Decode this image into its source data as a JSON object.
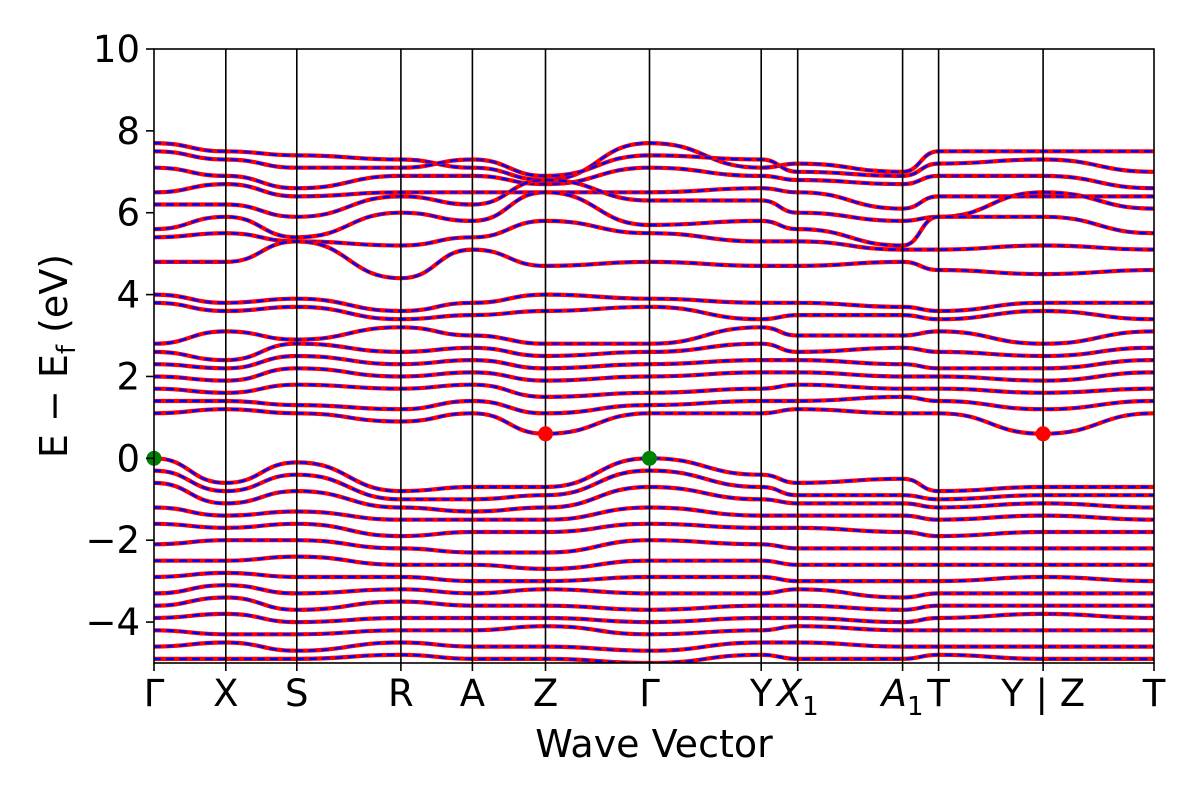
{
  "chart_data": {
    "type": "line",
    "xlabel": "Wave Vector",
    "ylabel": "E − E",
    "ylabel_subscript": "f",
    "ylabel_unit": " (eV)",
    "ylim": [
      -5,
      10
    ],
    "yticks": [
      -4,
      -2,
      0,
      2,
      4,
      6,
      8,
      10
    ],
    "ytick_labels": [
      "−4",
      "−2",
      "0",
      "2",
      "4",
      "6",
      "8",
      "10"
    ],
    "grid": false,
    "kpath_positions": [
      0,
      0.0718,
      0.1428,
      0.2469,
      0.3184,
      0.3915,
      0.4955,
      0.6072,
      0.6437,
      0.7486,
      0.7846,
      0.8891,
      1.0
    ],
    "kpath_labels": [
      {
        "text": "Γ",
        "sub": ""
      },
      {
        "text": "X",
        "sub": ""
      },
      {
        "text": "S",
        "sub": ""
      },
      {
        "text": "R",
        "sub": ""
      },
      {
        "text": "A",
        "sub": ""
      },
      {
        "text": "Z",
        "sub": ""
      },
      {
        "text": "Γ",
        "sub": ""
      },
      {
        "text": "Y",
        "sub": ""
      },
      {
        "text": "X",
        "sub": "1",
        "italic": true
      },
      {
        "text": "A",
        "sub": "1",
        "italic": true
      },
      {
        "text": "T",
        "sub": ""
      },
      {
        "text": "Y | Z",
        "sub": ""
      },
      {
        "text": "T",
        "sub": ""
      }
    ],
    "series": [
      {
        "name": "",
        "color": "#ff0000",
        "style": "solid"
      },
      {
        "name": "",
        "color": "#0000ff",
        "style": "dashed"
      }
    ],
    "band_groups": {
      "conduction": [
        [
          7.7,
          7.5,
          7.4,
          7.3,
          7.1,
          6.8,
          7.7,
          7.1,
          7.2,
          7.0,
          7.5,
          7.5,
          7.5
        ],
        [
          7.5,
          7.3,
          7.1,
          7.1,
          7.3,
          6.9,
          7.4,
          7.3,
          7.0,
          6.9,
          7.2,
          7.3,
          7.0
        ],
        [
          7.1,
          6.9,
          6.6,
          6.9,
          6.9,
          6.7,
          7.1,
          6.9,
          6.8,
          6.7,
          6.9,
          6.9,
          6.6
        ],
        [
          6.5,
          6.7,
          6.4,
          6.5,
          6.5,
          6.5,
          6.5,
          6.6,
          6.5,
          6.1,
          6.4,
          6.4,
          6.4
        ],
        [
          6.2,
          6.2,
          5.9,
          6.4,
          6.2,
          6.8,
          6.3,
          6.3,
          6.0,
          5.8,
          5.9,
          6.5,
          6.1
        ],
        [
          5.6,
          5.9,
          5.4,
          6.0,
          5.8,
          6.5,
          5.7,
          5.8,
          5.6,
          5.2,
          5.9,
          5.9,
          5.5
        ],
        [
          5.4,
          5.5,
          5.3,
          5.2,
          5.4,
          5.8,
          5.5,
          5.3,
          5.3,
          5.1,
          5.1,
          5.2,
          5.1
        ],
        [
          4.8,
          4.8,
          5.3,
          4.4,
          5.1,
          4.7,
          4.8,
          4.7,
          4.7,
          4.8,
          4.6,
          4.5,
          4.6
        ],
        [
          4.0,
          3.8,
          3.9,
          3.6,
          3.8,
          4.0,
          3.9,
          3.8,
          3.8,
          3.7,
          3.6,
          3.8,
          3.8
        ],
        [
          3.8,
          3.6,
          3.7,
          3.4,
          3.5,
          3.6,
          3.7,
          3.4,
          3.5,
          3.5,
          3.4,
          3.6,
          3.4
        ],
        [
          2.8,
          3.1,
          2.9,
          3.2,
          3.0,
          2.8,
          2.8,
          3.2,
          3.0,
          3.0,
          3.1,
          2.8,
          3.1
        ],
        [
          2.6,
          2.4,
          2.8,
          2.6,
          2.7,
          2.5,
          2.6,
          2.8,
          2.6,
          2.7,
          2.6,
          2.5,
          2.7
        ],
        [
          2.3,
          2.2,
          2.5,
          2.3,
          2.4,
          2.2,
          2.3,
          2.4,
          2.4,
          2.3,
          2.2,
          2.2,
          2.4
        ],
        [
          2.0,
          1.9,
          2.2,
          2.0,
          2.1,
          1.9,
          2.0,
          2.1,
          2.1,
          2.0,
          2.0,
          1.9,
          2.1
        ],
        [
          1.7,
          1.6,
          1.8,
          1.7,
          1.8,
          1.5,
          1.6,
          1.7,
          1.8,
          1.7,
          1.7,
          1.6,
          1.7
        ],
        [
          1.4,
          1.4,
          1.3,
          1.2,
          1.4,
          1.1,
          1.3,
          1.4,
          1.4,
          1.5,
          1.4,
          1.2,
          1.4
        ],
        [
          1.1,
          1.2,
          1.1,
          0.9,
          1.1,
          0.6,
          1.1,
          1.1,
          1.2,
          1.1,
          1.1,
          0.6,
          1.1
        ]
      ],
      "valence": [
        [
          0.0,
          -0.6,
          -0.1,
          -0.8,
          -0.7,
          -0.7,
          0.0,
          -0.4,
          -0.6,
          -0.5,
          -0.8,
          -0.7,
          -0.7
        ],
        [
          -0.3,
          -0.8,
          -0.4,
          -1.0,
          -1.0,
          -0.9,
          -0.3,
          -0.7,
          -0.9,
          -0.9,
          -1.0,
          -0.9,
          -0.9
        ],
        [
          -0.6,
          -1.1,
          -0.8,
          -1.2,
          -1.3,
          -1.2,
          -0.7,
          -1.0,
          -1.1,
          -1.1,
          -1.2,
          -1.1,
          -1.2
        ],
        [
          -1.2,
          -1.4,
          -1.3,
          -1.5,
          -1.5,
          -1.5,
          -1.2,
          -1.4,
          -1.4,
          -1.4,
          -1.5,
          -1.4,
          -1.5
        ],
        [
          -1.6,
          -1.7,
          -1.6,
          -1.9,
          -1.8,
          -1.8,
          -1.6,
          -1.7,
          -1.7,
          -1.8,
          -1.9,
          -1.8,
          -1.8
        ],
        [
          -2.1,
          -2.0,
          -2.0,
          -2.2,
          -2.3,
          -2.3,
          -2.0,
          -2.1,
          -2.2,
          -2.2,
          -2.2,
          -2.2,
          -2.2
        ],
        [
          -2.5,
          -2.5,
          -2.4,
          -2.6,
          -2.6,
          -2.7,
          -2.5,
          -2.5,
          -2.6,
          -2.6,
          -2.6,
          -2.6,
          -2.6
        ],
        [
          -2.9,
          -2.8,
          -2.9,
          -2.9,
          -3.0,
          -3.0,
          -2.9,
          -2.9,
          -3.0,
          -3.0,
          -3.0,
          -2.9,
          -3.0
        ],
        [
          -3.3,
          -3.1,
          -3.3,
          -3.2,
          -3.3,
          -3.2,
          -3.3,
          -3.3,
          -3.2,
          -3.4,
          -3.3,
          -3.3,
          -3.3
        ],
        [
          -3.6,
          -3.4,
          -3.7,
          -3.5,
          -3.6,
          -3.6,
          -3.7,
          -3.6,
          -3.6,
          -3.7,
          -3.6,
          -3.6,
          -3.6
        ],
        [
          -3.9,
          -3.8,
          -4.0,
          -3.9,
          -3.9,
          -3.9,
          -4.0,
          -3.9,
          -3.9,
          -4.0,
          -3.9,
          -3.8,
          -3.9
        ],
        [
          -4.2,
          -4.3,
          -4.3,
          -4.2,
          -4.2,
          -4.1,
          -4.3,
          -4.2,
          -4.1,
          -4.2,
          -4.2,
          -4.2,
          -4.2
        ],
        [
          -4.6,
          -4.5,
          -4.7,
          -4.5,
          -4.6,
          -4.6,
          -4.7,
          -4.5,
          -4.5,
          -4.6,
          -4.6,
          -4.6,
          -4.6
        ],
        [
          -4.9,
          -4.9,
          -4.9,
          -4.8,
          -4.9,
          -4.9,
          -5.0,
          -4.8,
          -4.9,
          -4.9,
          -4.8,
          -4.9,
          -4.9
        ]
      ]
    },
    "markers": [
      {
        "kpoint": "Γ",
        "k": 0,
        "energy": 0.0,
        "color": "#008000"
      },
      {
        "kpoint": "Γ",
        "k": 0.4955,
        "energy": 0.0,
        "color": "#008000"
      },
      {
        "kpoint": "Z",
        "k": 0.3915,
        "energy": 0.6,
        "color": "#ff0000"
      },
      {
        "kpoint": "Y | Z",
        "k": 0.8891,
        "energy": 0.6,
        "color": "#ff0000"
      }
    ]
  }
}
